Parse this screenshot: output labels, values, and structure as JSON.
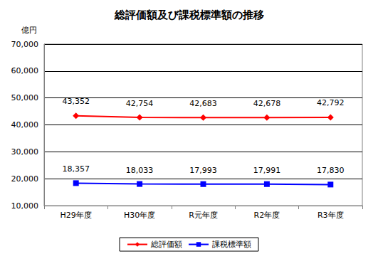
{
  "chart_data": {
    "type": "line",
    "title": "総評価額及び課税標準額の推移",
    "ylabel": "億円",
    "categories": [
      "H29年度",
      "H30年度",
      "R元年度",
      "R2年度",
      "R3年度"
    ],
    "series": [
      {
        "name": "総評価額",
        "color": "#ff0000",
        "marker": "diamond",
        "values": [
          43352,
          42754,
          42683,
          42678,
          42792
        ],
        "value_labels": [
          "43,352",
          "42,754",
          "42,683",
          "42,678",
          "42,792"
        ]
      },
      {
        "name": "課税標準額",
        "color": "#0000ff",
        "marker": "square",
        "values": [
          18357,
          18033,
          17993,
          17991,
          17830
        ],
        "value_labels": [
          "18,357",
          "18,033",
          "17,993",
          "17,991",
          "17,830"
        ]
      }
    ],
    "ylim": [
      10000,
      70000
    ],
    "yticks": [
      {
        "value": 10000,
        "label": "10,000"
      },
      {
        "value": 20000,
        "label": "20,000"
      },
      {
        "value": 30000,
        "label": "30,000"
      },
      {
        "value": 40000,
        "label": "40,000"
      },
      {
        "value": 50000,
        "label": "50,000"
      },
      {
        "value": 60000,
        "label": "60,000"
      },
      {
        "value": 70000,
        "label": "70,000"
      }
    ],
    "grid": true,
    "legend": "bottom",
    "data_labels": true
  }
}
